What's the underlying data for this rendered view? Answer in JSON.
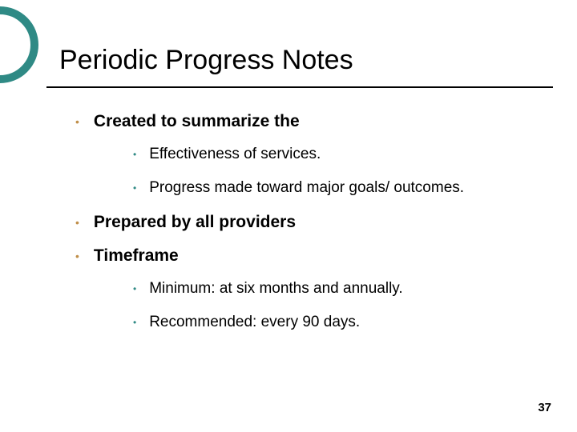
{
  "title": "Periodic Progress Notes",
  "decoration": {
    "circle_border_color": "#2f8a85",
    "circle_border_width": 10
  },
  "bullets": {
    "level1_color": "#c08f4a",
    "level2_color": "#2f8a85"
  },
  "items": [
    {
      "text": "Created to summarize the",
      "bold": true,
      "children": [
        {
          "text": "Effectiveness of services."
        },
        {
          "text": "Progress made toward major goals/ outcomes."
        }
      ]
    },
    {
      "text": "Prepared by all providers",
      "bold": true,
      "children": []
    },
    {
      "text": "Timeframe",
      "bold": true,
      "children": [
        {
          "text": "Minimum: at six months and annually."
        },
        {
          "text": "Recommended: every 90 days."
        }
      ]
    }
  ],
  "page_number": "37"
}
